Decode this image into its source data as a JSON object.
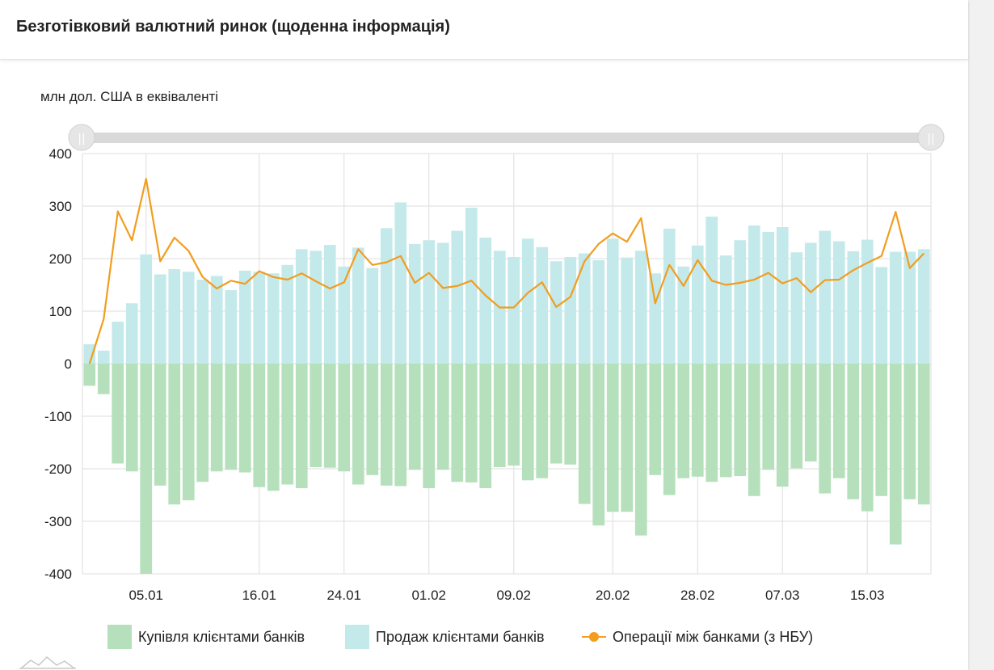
{
  "title": "Безготівковий валютний ринок (щоденна інформація)",
  "unit_label": "млн дол. США в еквіваленті",
  "colors": {
    "buy": "#b5e0bb",
    "sell": "#c4e9ea",
    "interbank": "#f29d1e",
    "grid": "#dedede",
    "slider_track": "#d9d9d9"
  },
  "legend": {
    "buy": "Купівля клієнтами банків",
    "sell": "Продаж клієнтами банків",
    "interbank": "Операції між банками (з НБУ)"
  },
  "chart_data": {
    "type": "bar",
    "ylim": [
      -400,
      400
    ],
    "yticks": [
      "400",
      "300",
      "200",
      "100",
      "0",
      "-100",
      "-200",
      "-300",
      "-400"
    ],
    "xticks": [
      {
        "label": "05.01",
        "index": 4
      },
      {
        "label": "16.01",
        "index": 12
      },
      {
        "label": "24.01",
        "index": 18
      },
      {
        "label": "01.02",
        "index": 24
      },
      {
        "label": "09.02",
        "index": 30
      },
      {
        "label": "20.02",
        "index": 37
      },
      {
        "label": "28.02",
        "index": 43
      },
      {
        "label": "07.03",
        "index": 49
      },
      {
        "label": "15.03",
        "index": 55
      }
    ],
    "grid": true,
    "legend_position": "bottom",
    "series": [
      {
        "name": "Купівля клієнтами банків",
        "kind": "bar",
        "values": [
          -42,
          -58,
          -190,
          -205,
          -400,
          -232,
          -268,
          -260,
          -225,
          -205,
          -202,
          -207,
          -235,
          -242,
          -230,
          -237,
          -197,
          -198,
          -205,
          -230,
          -212,
          -232,
          -233,
          -202,
          -237,
          -202,
          -225,
          -226,
          -237,
          -197,
          -194,
          -222,
          -218,
          -190,
          -192,
          -267,
          -308,
          -282,
          -282,
          -327,
          -212,
          -250,
          -218,
          -215,
          -225,
          -216,
          -214,
          -252,
          -202,
          -234,
          -199,
          -186,
          -247,
          -218,
          -258,
          -281,
          -252,
          -344,
          -258,
          -268
        ]
      },
      {
        "name": "Продаж клієнтами банків",
        "kind": "bar",
        "values": [
          37,
          25,
          80,
          115,
          208,
          170,
          180,
          175,
          160,
          167,
          140,
          177,
          175,
          172,
          188,
          218,
          215,
          226,
          185,
          221,
          182,
          258,
          307,
          228,
          235,
          230,
          253,
          297,
          240,
          215,
          203,
          238,
          222,
          195,
          203,
          210,
          197,
          238,
          202,
          215,
          172,
          257,
          185,
          225,
          280,
          206,
          235,
          263,
          251,
          260,
          212,
          230,
          253,
          233,
          214,
          236,
          184,
          213,
          213,
          218
        ]
      },
      {
        "name": "Операції між банками (з НБУ)",
        "kind": "line",
        "values": [
          0,
          85,
          290,
          235,
          352,
          195,
          240,
          215,
          165,
          143,
          158,
          152,
          176,
          165,
          160,
          172,
          157,
          143,
          155,
          218,
          188,
          193,
          205,
          154,
          173,
          144,
          148,
          158,
          130,
          107,
          107,
          135,
          155,
          108,
          127,
          195,
          228,
          248,
          232,
          277,
          115,
          188,
          148,
          197,
          158,
          150,
          154,
          160,
          173,
          153,
          163,
          136,
          159,
          160,
          178,
          192,
          205,
          289,
          182,
          210
        ]
      }
    ]
  }
}
